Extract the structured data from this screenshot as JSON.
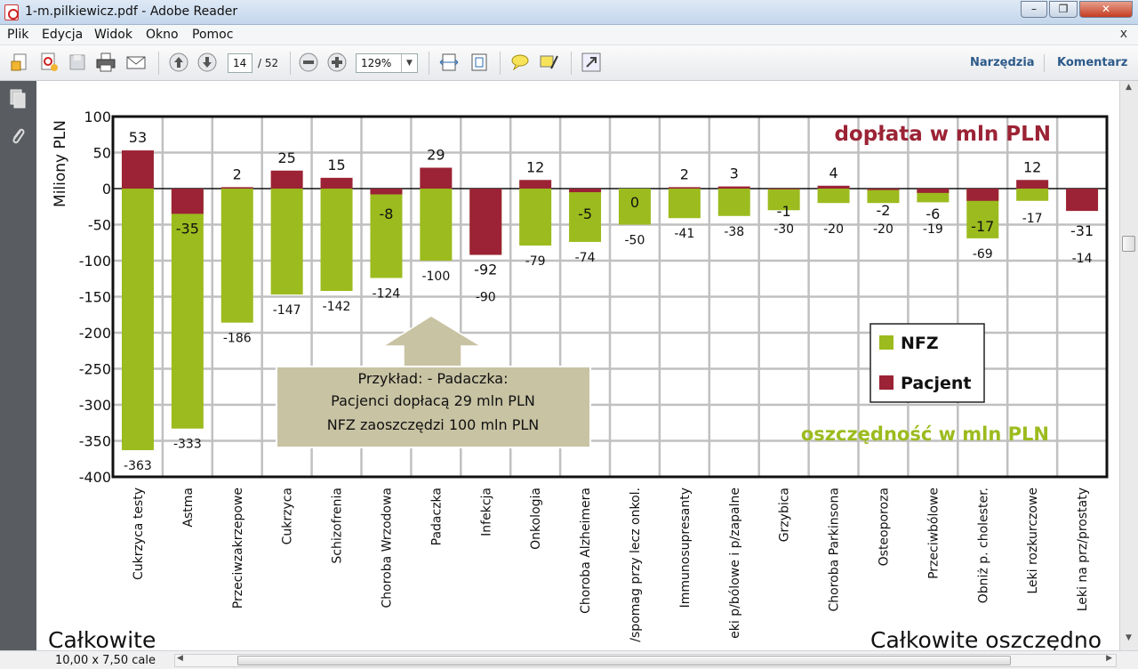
{
  "window": {
    "title": "1-m.pilkiewicz.pdf - Adobe Reader",
    "minimize_icon": "minimize-icon",
    "maximize_icon": "restore-icon",
    "close_icon": "close-icon"
  },
  "menu": {
    "items": [
      "Plik",
      "Edycja",
      "Widok",
      "Okno",
      "Pomoc"
    ],
    "close_symbol": "x"
  },
  "toolbar": {
    "page_current": "14",
    "page_total": "/ 52",
    "zoom": "129%",
    "tools_label": "Narzędzia",
    "comment_label": "Komentarz"
  },
  "status": {
    "page_size": "10,00 x 7,50 cale"
  },
  "colors": {
    "nfz": "#9cbb1e",
    "pacjent": "#9b2335",
    "doplata_text": "#9b2335",
    "oszczednosc_text": "#9cbb1e",
    "callout_fill": "#c8c3a3",
    "grid": "#c0c0c0"
  },
  "slide": {
    "bottom_left_text": "Całkowite",
    "bottom_right_text": "Całkowite oszczędno"
  },
  "chart_data": {
    "type": "bar",
    "ylabel": "Miliony PLN",
    "ylim": [
      -400,
      100
    ],
    "yticks": [
      100,
      50,
      0,
      -50,
      -100,
      -150,
      -200,
      -250,
      -300,
      -350,
      -400
    ],
    "grid": true,
    "legend_position": "right-middle",
    "categories": [
      "Cukrzyca testy",
      "Astma",
      "Przeciwzakrzepowe",
      "Cukrzyca",
      "Schizofrenia",
      "Choroba Wrzodowa",
      "Padaczka",
      "Infekcja",
      "Onkologia",
      "Choroba Alzheimera",
      "/spomag przy lecz onkol.",
      "Immunosupresanty",
      "eki p/bólowe i p/zapalne",
      "Grzybica",
      "Choroba Parkinsona",
      "Osteoporoza",
      "Przeciwbólowe",
      "Obniż p. cholester.",
      "Leki rozkurczowe",
      "Leki na prz/prostaty"
    ],
    "series": [
      {
        "name": "NFZ",
        "values": [
          -363,
          -333,
          -186,
          -147,
          -142,
          -124,
          -100,
          -90,
          -79,
          -74,
          -50,
          -41,
          -38,
          -30,
          -20,
          -20,
          -19,
          -69,
          -17,
          -14
        ],
        "labels": [
          "-363",
          "-333",
          "-186",
          "-147",
          "-142",
          "-124",
          "-100",
          "-90",
          "-79",
          "-74",
          "-50",
          "-41",
          "-38",
          "-30",
          "-20",
          "-20",
          "-19",
          "-69",
          "-17",
          "-14"
        ]
      },
      {
        "name": "Pacjent",
        "values": [
          53,
          -35,
          2,
          25,
          15,
          -8,
          29,
          -92,
          12,
          -5,
          0,
          2,
          3,
          -1,
          4,
          -2,
          -6,
          -17,
          12,
          -31
        ],
        "labels": [
          "53",
          "-35",
          "2",
          "25",
          "15",
          "-8",
          "29",
          "-92",
          "12",
          "-5",
          "0",
          "2",
          "3",
          "-1",
          "4",
          "-2",
          "-6",
          "-17",
          "12",
          "-31"
        ]
      }
    ],
    "annotations": {
      "top_right": "dopłata w mln PLN",
      "bottom_right": "oszczędność w mln PLN",
      "callout_lines": [
        "Przykład: - Padaczka:",
        "Pacjenci dopłacą 29 mln PLN",
        "NFZ zaoszczędzi 100 mln PLN"
      ]
    }
  }
}
